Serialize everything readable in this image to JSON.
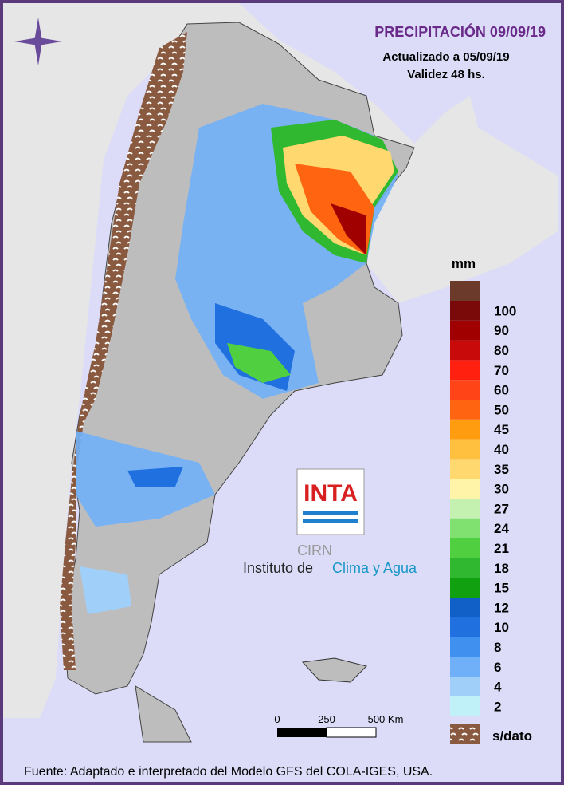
{
  "header": {
    "title": "PRECIPITACIÓN 09/09/19",
    "updated": "Actualizado a 05/09/19",
    "validity": "Validez 48 hs."
  },
  "legend": {
    "unit": "mm",
    "entries": [
      {
        "label": "100",
        "color": "#7a0a0a"
      },
      {
        "label": "90",
        "color": "#a00000"
      },
      {
        "label": "80",
        "color": "#c80a0a"
      },
      {
        "label": "70",
        "color": "#ff2010"
      },
      {
        "label": "60",
        "color": "#ff4418"
      },
      {
        "label": "50",
        "color": "#ff6410"
      },
      {
        "label": "45",
        "color": "#ff9c10"
      },
      {
        "label": "40",
        "color": "#ffc040"
      },
      {
        "label": "35",
        "color": "#ffd870"
      },
      {
        "label": "30",
        "color": "#fff4a8"
      },
      {
        "label": "27",
        "color": "#c4f0b0"
      },
      {
        "label": "24",
        "color": "#80e070"
      },
      {
        "label": "21",
        "color": "#50d040"
      },
      {
        "label": "18",
        "color": "#30b830"
      },
      {
        "label": "15",
        "color": "#10a010"
      },
      {
        "label": "12",
        "color": "#1060c8"
      },
      {
        "label": "10",
        "color": "#2070e0"
      },
      {
        "label": "8",
        "color": "#4090f0"
      },
      {
        "label": "6",
        "color": "#70b0f8"
      },
      {
        "label": "4",
        "color": "#a0d0fa"
      },
      {
        "label": "2",
        "color": "#c0f0f8"
      }
    ],
    "no_data": "s/dato"
  },
  "scale": {
    "labels": [
      "0",
      "250",
      "500 Km"
    ]
  },
  "logo": {
    "brand": "INTA",
    "unit": "CIRN",
    "institute_prefix": "Instituto de",
    "institute_name": "Clima y Agua"
  },
  "footer": {
    "source": "Fuente: Adaptado e interpretado del Modelo GFS del COLA-IGES, USA."
  }
}
